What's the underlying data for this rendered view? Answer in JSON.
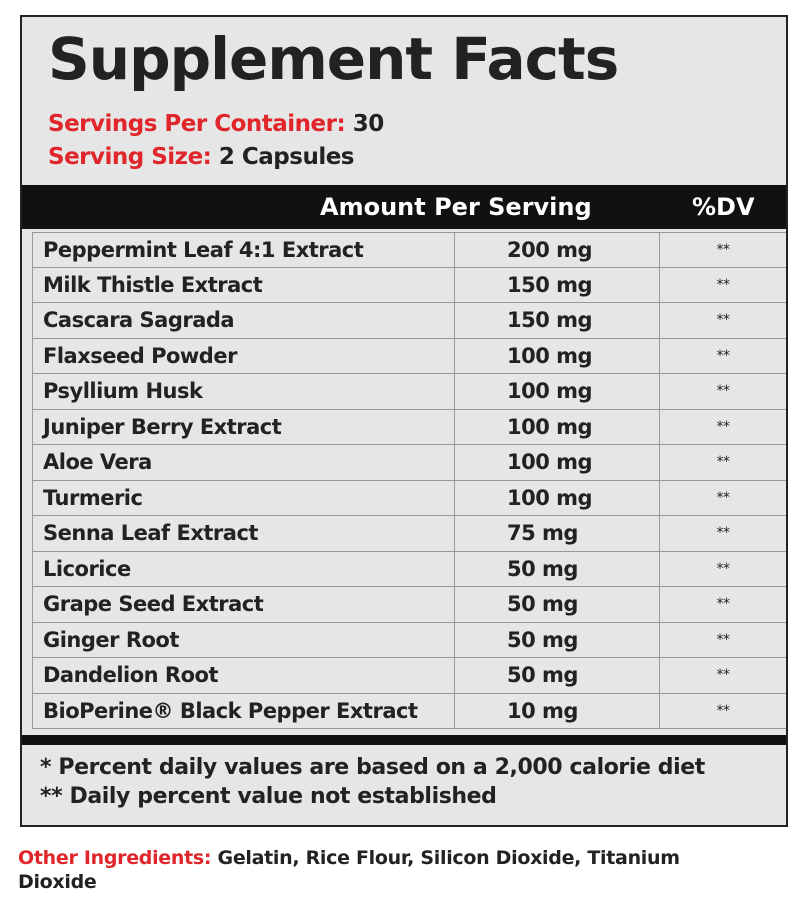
{
  "header": {
    "title": "Supplement Facts",
    "servings_per_container": {
      "label": "Servings Per Container:",
      "value": "30"
    },
    "serving_size": {
      "label": "Serving Size:",
      "value": "2 Capsules"
    }
  },
  "table": {
    "columns": [
      "Amount Per Serving",
      "%DV"
    ],
    "rows": [
      [
        "Peppermint Leaf 4:1 Extract",
        "200 mg",
        "**"
      ],
      [
        "Milk Thistle Extract",
        "150 mg",
        "**"
      ],
      [
        "Cascara Sagrada",
        "150 mg",
        "**"
      ],
      [
        "Flaxseed Powder",
        "100 mg",
        "**"
      ],
      [
        "Psyllium Husk",
        "100 mg",
        "**"
      ],
      [
        "Juniper Berry Extract",
        "100 mg",
        "**"
      ],
      [
        "Aloe Vera",
        "100 mg",
        "**"
      ],
      [
        "Turmeric",
        "100 mg",
        "**"
      ],
      [
        "Senna Leaf Extract",
        "75 mg",
        "**"
      ],
      [
        "Licorice",
        "50 mg",
        "**"
      ],
      [
        "Grape Seed Extract",
        "50 mg",
        "**"
      ],
      [
        "Ginger Root",
        "50 mg",
        "**"
      ],
      [
        "Dandelion Root",
        "50 mg",
        "**"
      ],
      [
        "BioPerine® Black Pepper Extract",
        "10 mg",
        "**"
      ]
    ]
  },
  "footnotes": [
    "* Percent daily values are based on a 2,000 calorie diet",
    "** Daily percent value not established"
  ],
  "other_ingredients": {
    "label": "Other Ingredients:",
    "value": "Gelatin, Rice Flour, Silicon Dioxide, Titanium Dioxide"
  }
}
